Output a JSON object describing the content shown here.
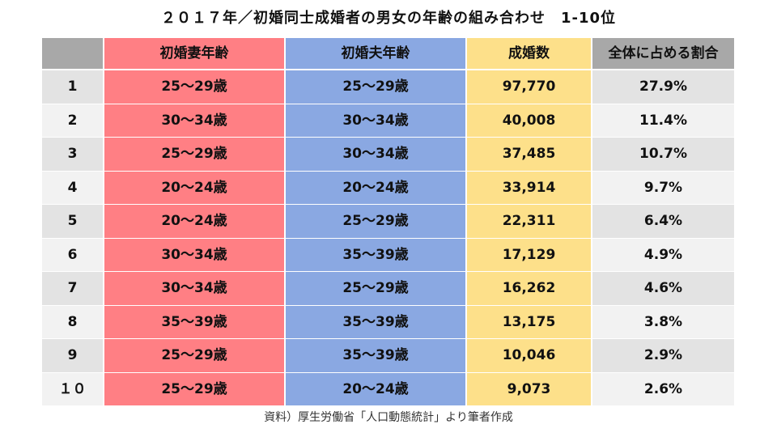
{
  "title": "２０１７年／初婚同士成婚者の男女の年齢の組み合わせ　1-10位",
  "source": "資料）厚生労働省「人口動態統計」より筆者作成",
  "colors": {
    "wife": "#ff7f84",
    "husband": "#8aa8e2",
    "count": "#fde08a",
    "header_gray": "#a8a8a8",
    "row_gray_dark": "#e3e3e3",
    "row_gray_light": "#f2f2f2"
  },
  "chart_data": {
    "type": "table",
    "title": "２０１７年／初婚同士成婚者の男女の年齢の組み合わせ　1-10位",
    "columns": [
      "",
      "初婚妻年齢",
      "初婚夫年齢",
      "成婚数",
      "全体に占める割合"
    ],
    "rows": [
      [
        "1",
        "25～29歳",
        "25～29歳",
        "97,770",
        "27.9%"
      ],
      [
        "2",
        "30～34歳",
        "30～34歳",
        "40,008",
        "11.4%"
      ],
      [
        "3",
        "25～29歳",
        "30～34歳",
        "37,485",
        "10.7%"
      ],
      [
        "4",
        "20～24歳",
        "20～24歳",
        "33,914",
        "9.7%"
      ],
      [
        "5",
        "20～24歳",
        "25～29歳",
        "22,311",
        "6.4%"
      ],
      [
        "6",
        "30～34歳",
        "35～39歳",
        "17,129",
        "4.9%"
      ],
      [
        "7",
        "30～34歳",
        "25～29歳",
        "16,262",
        "4.6%"
      ],
      [
        "8",
        "35～39歳",
        "35～39歳",
        "13,175",
        "3.8%"
      ],
      [
        "9",
        "25～29歳",
        "35～39歳",
        "10,046",
        "2.9%"
      ],
      [
        "１０",
        "25～29歳",
        "20～24歳",
        "9,073",
        "2.6%"
      ]
    ]
  }
}
